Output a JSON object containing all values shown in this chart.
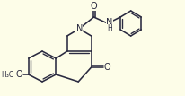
{
  "bg_color": "#FDFDE8",
  "lc": "#2a2a40",
  "lw": 1.15,
  "figsize": [
    2.06,
    1.07
  ],
  "dpi": 100,
  "xlim": [
    0,
    206
  ],
  "ylim": [
    0,
    107
  ]
}
